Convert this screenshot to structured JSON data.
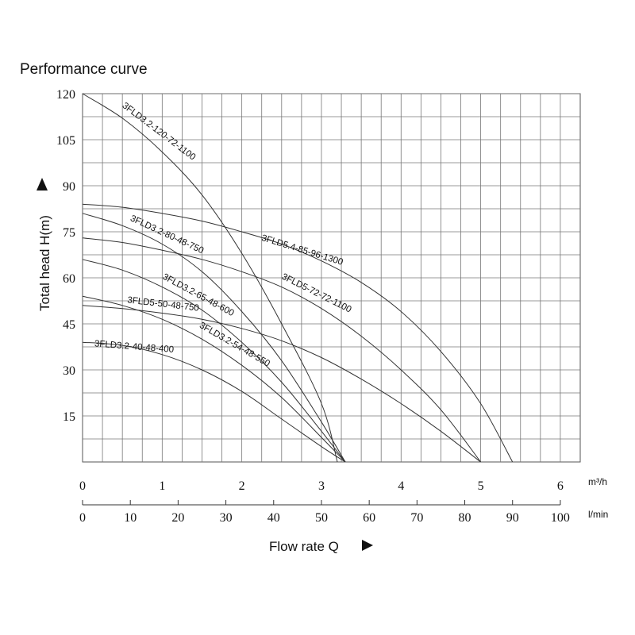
{
  "chart_data": {
    "type": "line",
    "title": "Performance curve",
    "ylabel": "Total head H(m)",
    "xlabel": "Flow rate Q",
    "ylim": [
      0,
      120
    ],
    "y_ticks": [
      15,
      30,
      45,
      60,
      75,
      90,
      105,
      120
    ],
    "x_axes": [
      {
        "unit": "m³/h",
        "range": [
          0,
          6
        ],
        "ticks": [
          "0",
          "1",
          "2",
          "3",
          "4",
          "5",
          "6"
        ]
      },
      {
        "unit": "l/min",
        "range": [
          0,
          100
        ],
        "ticks": [
          "0",
          "10",
          "20",
          "30",
          "40",
          "50",
          "60",
          "70",
          "80",
          "90",
          "100"
        ]
      }
    ],
    "grid": true,
    "series": [
      {
        "name": "3FLD3.2-120-72-1100",
        "x": [
          0,
          0.5,
          1.0,
          1.5,
          2.0,
          2.5,
          3.0,
          3.2
        ],
        "y": [
          120,
          112,
          101,
          87,
          68,
          45,
          19,
          0
        ]
      },
      {
        "name": "3FLD5.4-85-96-1300",
        "x": [
          0,
          0.5,
          1.0,
          1.5,
          2.0,
          2.5,
          3.0,
          3.5,
          4.0,
          4.5,
          5.0,
          5.4
        ],
        "y": [
          84,
          83,
          81,
          78.5,
          75,
          71,
          65.5,
          58.5,
          49,
          36,
          19,
          0
        ]
      },
      {
        "name": "3FLD3.2-80-48-750",
        "x": [
          0,
          0.5,
          1.0,
          1.5,
          2.0,
          2.5,
          3.0,
          3.3
        ],
        "y": [
          81,
          77,
          71,
          62,
          49,
          33,
          13,
          0
        ]
      },
      {
        "name": "3FLD5-72-72-1100",
        "x": [
          0,
          0.5,
          1.0,
          1.5,
          2.0,
          2.5,
          3.0,
          3.5,
          4.0,
          4.5,
          5.0
        ],
        "y": [
          73,
          71.5,
          69,
          66,
          62,
          57,
          50,
          41,
          30,
          17,
          0
        ]
      },
      {
        "name": "3FLD3.2-65-48-600",
        "x": [
          0,
          0.5,
          1.0,
          1.5,
          2.0,
          2.5,
          3.0,
          3.3
        ],
        "y": [
          66,
          62.5,
          57,
          49.5,
          39,
          26,
          10,
          0
        ]
      },
      {
        "name": "3FLD5-50-48-750",
        "x": [
          0,
          0.5,
          1.0,
          1.5,
          2.0,
          2.5,
          3.0,
          3.5,
          4.0,
          4.5,
          5.0
        ],
        "y": [
          51,
          50,
          48.5,
          46.5,
          43.5,
          39.5,
          34,
          27,
          19,
          10,
          0
        ]
      },
      {
        "name": "3FLD3.2-54-48-550",
        "x": [
          0,
          0.5,
          1.0,
          1.5,
          2.0,
          2.5,
          3.0,
          3.3
        ],
        "y": [
          54,
          51,
          46.5,
          40,
          31.5,
          21,
          8,
          0
        ]
      },
      {
        "name": "3FLD3.2-40-48-400",
        "x": [
          0,
          0.5,
          1.0,
          1.5,
          2.0,
          2.5,
          3.0,
          3.3
        ],
        "y": [
          39,
          38,
          35,
          30,
          23,
          14,
          5,
          0
        ]
      }
    ]
  }
}
